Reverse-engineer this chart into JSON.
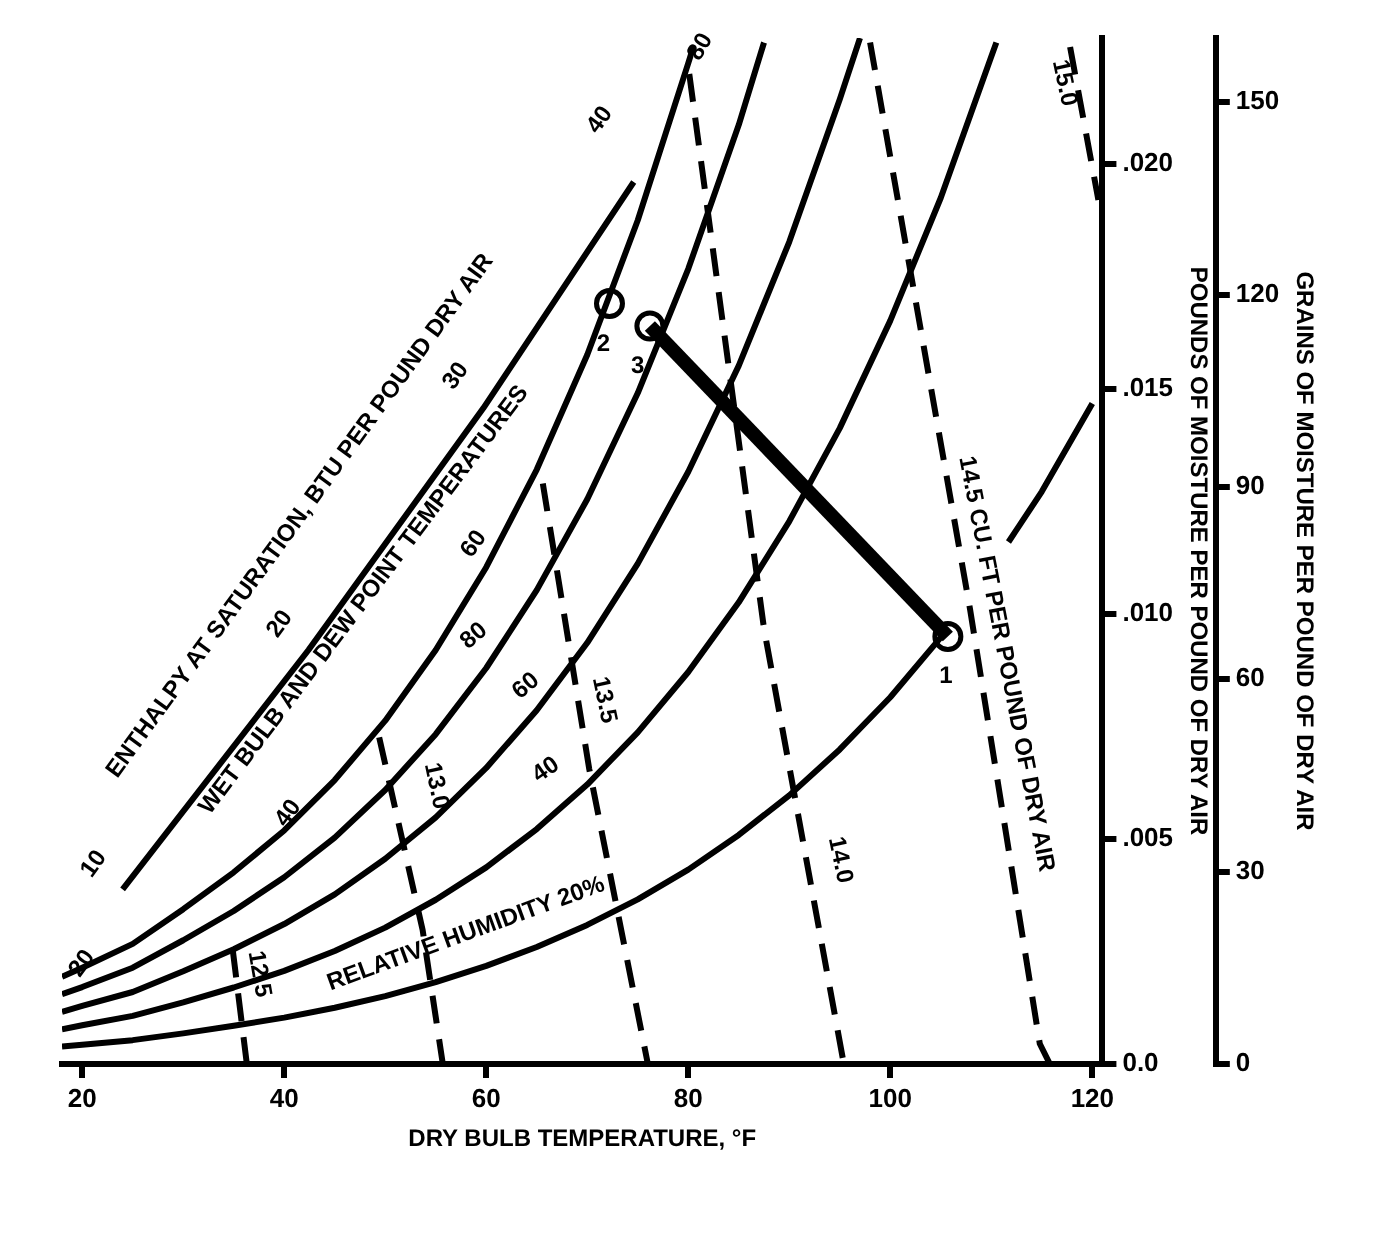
{
  "chart_data": {
    "type": "line",
    "xlabel": "DRY BULB TEMPERATURE, °F",
    "ylabel": "POUNDS OF MOISTURE PER POUND OF DRY AIR",
    "y2label": "GRAINS OF MOISTURE PER POUND OF DRY AIR",
    "xlim": [
      18,
      121
    ],
    "xticks": [
      20,
      40,
      60,
      80,
      100,
      120
    ],
    "ylim": [
      0,
      0.0228
    ],
    "yticks": [
      {
        "value": 0,
        "label": "0.0"
      },
      {
        "value": 0.005,
        "label": ".005"
      },
      {
        "value": 0.01,
        "label": ".010"
      },
      {
        "value": 0.015,
        "label": ".015"
      },
      {
        "value": 0.02,
        "label": ".020"
      }
    ],
    "y2lim": [
      0,
      160
    ],
    "y2ticks": [
      0,
      30,
      60,
      90,
      120,
      150
    ],
    "grid": false,
    "legend": false,
    "marker": "none",
    "line_style": "solid",
    "series": [
      {
        "color": "#000000",
        "x": [
          18,
          20,
          25,
          30,
          35,
          40,
          45,
          50,
          55,
          60,
          65,
          70,
          75,
          80,
          80.5
        ],
        "values": [
          0.00194,
          0.00214,
          0.00267,
          0.00344,
          0.00426,
          0.00519,
          0.00631,
          0.00763,
          0.0092,
          0.01104,
          0.01321,
          0.01576,
          0.01875,
          0.02224,
          0.0226
        ]
      },
      {
        "color": "#000000",
        "x": [
          18,
          20,
          25,
          30,
          35,
          40,
          45,
          50,
          55,
          60,
          65,
          70,
          75,
          80,
          85,
          87.5
        ],
        "values": [
          0.00155,
          0.00171,
          0.00214,
          0.00275,
          0.0034,
          0.00415,
          0.00503,
          0.00609,
          0.00733,
          0.0088,
          0.01053,
          0.01255,
          0.01491,
          0.01767,
          0.02087,
          0.0227
        ]
      },
      {
        "color": "#000000",
        "x": [
          18,
          20,
          25,
          30,
          35,
          40,
          45,
          50,
          55,
          60,
          65,
          70,
          75,
          80,
          85,
          90,
          95,
          97
        ],
        "values": [
          0.00116,
          0.00129,
          0.0016,
          0.00206,
          0.00255,
          0.00311,
          0.00377,
          0.00456,
          0.00548,
          0.00658,
          0.00786,
          0.00936,
          0.01112,
          0.01316,
          0.01552,
          0.01827,
          0.02144,
          0.0228
        ]
      },
      {
        "color": "#000000",
        "x": [
          18,
          20,
          25,
          30,
          35,
          40,
          45,
          50,
          55,
          60,
          65,
          70,
          75,
          80,
          85,
          90,
          95,
          100,
          105,
          110,
          110.5
        ],
        "values": [
          0.00077,
          0.00086,
          0.00107,
          0.00137,
          0.0017,
          0.00207,
          0.00251,
          0.00303,
          0.00365,
          0.00437,
          0.00522,
          0.00621,
          0.00737,
          0.00871,
          0.01026,
          0.01206,
          0.01413,
          0.01652,
          0.01925,
          0.02239,
          0.0227
        ]
      },
      {
        "color": "#000000",
        "x": [
          18,
          20,
          25,
          30,
          35,
          40,
          45,
          50,
          55,
          60,
          65,
          70,
          75,
          80,
          85,
          90,
          95,
          100,
          105,
          110,
          111.7,
          115,
          120
        ],
        "values": [
          0.00039,
          0.00043,
          0.00053,
          0.00068,
          0.00085,
          0.00103,
          0.00125,
          0.00151,
          0.00182,
          0.00218,
          0.0026,
          0.00309,
          0.00366,
          0.00432,
          0.00509,
          0.00597,
          0.00699,
          0.00815,
          0.00948,
          null,
          0.0116,
          0.01272,
          0.01468
        ]
      },
      {
        "color": "#000000",
        "x": [
          24,
          42.4,
          59.7,
          74.6
        ],
        "values": [
          0.00388,
          0.0092,
          0.01457,
          0.0196
        ]
      },
      {
        "color": "#000000",
        "line_style": "dashed",
        "x": [
          34.9,
          36.3
        ],
        "values": [
          0.00254,
          0
        ]
      },
      {
        "color": "#000000",
        "line_style": "dashed",
        "x": [
          49.4,
          53.7,
          55.7
        ],
        "values": [
          0.00726,
          0.00298,
          0
        ]
      },
      {
        "color": "#000000",
        "line_style": "dashed",
        "x": [
          65.6,
          70.2,
          76
        ],
        "values": [
          0.0129,
          0.00655,
          0
        ]
      },
      {
        "color": "#000000",
        "line_style": "dashed",
        "x": [
          80.1,
          87.5,
          95.4
        ],
        "values": [
          0.022,
          0.00967,
          0
        ]
      },
      {
        "color": "#000000",
        "line_style": "dashed",
        "x": [
          98,
          107.9,
          114.8,
          115.8
        ],
        "values": [
          0.0227,
          0.0101,
          0.00045,
          0
        ]
      },
      {
        "color": "#000000",
        "line_style": "dashed",
        "x": [
          117.8,
          120.6
        ],
        "values": [
          0.0226,
          0.0192
        ]
      },
      {
        "color": "#000000",
        "x": [
          76.2,
          105.7
        ],
        "values": [
          0.0164,
          0.0095
        ]
      },
      {
        "type": "scatter",
        "marker": "circle",
        "color": "#000000",
        "x": [
          72.2,
          76.2,
          105.7
        ],
        "values": [
          0.0169,
          0.0164,
          0.0095
        ]
      }
    ],
    "annotations": [
      "ENTHALPY AT SATURATION, BTU PER POUND DRY AIR",
      "10",
      "20",
      "30",
      "40",
      "WET BULB AND DEW POINT TEMPERATURES",
      {
        "text": "20",
        "x": 20,
        "y": 0.00223
      },
      {
        "text": "40",
        "x": 40.4,
        "y": 0.00557
      },
      "60",
      {
        "text": "80",
        "x": 81.2,
        "y": 0.0226
      },
      "80",
      "60",
      "40",
      "RELATIVE HUMIDITY 20%",
      {
        "text": "12.5",
        "x": 37.5,
        "y": 0.002
      },
      "13.0",
      "13.5",
      "14.0",
      "14.5 CU. FT PER POUND OF DRY AIR",
      {
        "text": "15.0",
        "x": 117.2,
        "y": 0.0218
      },
      "1",
      {
        "text": "2",
        "x": 71.6,
        "y": 0.016
      },
      {
        "text": "3",
        "x": 75,
        "y": 0.0155
      }
    ]
  }
}
